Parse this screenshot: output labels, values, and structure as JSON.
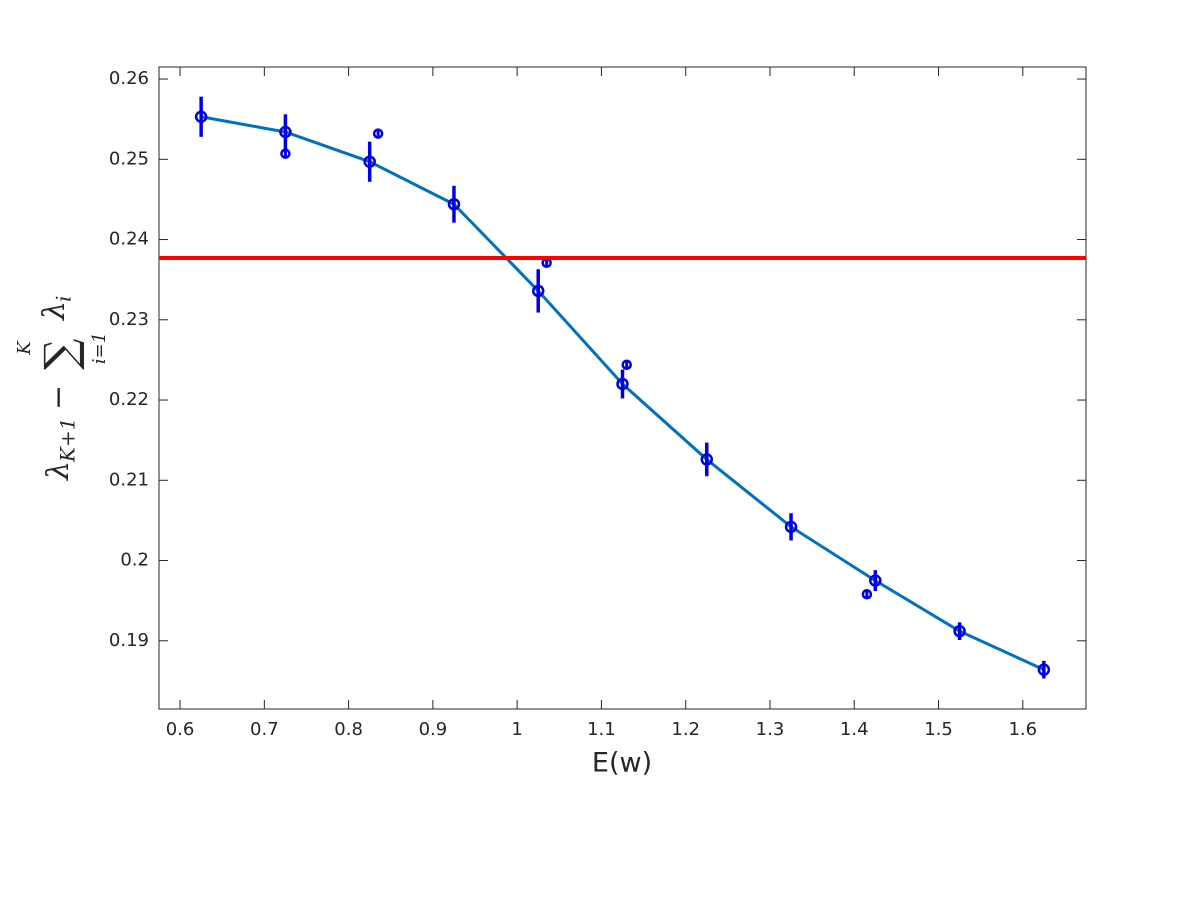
{
  "chart_data": {
    "type": "line",
    "xlabel": "E(w)",
    "ylabel_parts": [
      "λ",
      "K+1",
      " − ",
      "∑",
      "i=1",
      "K",
      "λ",
      "i"
    ],
    "x": [
      0.625,
      0.725,
      0.825,
      0.925,
      1.025,
      1.125,
      1.225,
      1.325,
      1.425,
      1.525,
      1.625
    ],
    "series": [
      {
        "color": "#0072bd",
        "marker_color": "#0000e6",
        "values": [
          0.2553,
          0.2534,
          0.2497,
          0.2444,
          0.2336,
          0.222,
          0.2126,
          0.2042,
          0.1975,
          0.1912,
          0.1864
        ],
        "errors": [
          0.0025,
          0.0022,
          0.0025,
          0.0023,
          0.0027,
          0.0018,
          0.0021,
          0.0017,
          0.0013,
          0.0011,
          0.0011
        ]
      }
    ],
    "points": {
      "color": "#0000e6",
      "x": [
        0.725,
        0.835,
        1.035,
        1.13,
        1.415
      ],
      "values": [
        0.2507,
        0.2532,
        0.2371,
        0.2244,
        0.1958
      ],
      "errors": [
        0.0004,
        0.0004,
        0.0004,
        0.0004,
        0.0004
      ]
    },
    "hline": {
      "value": 0.2377,
      "color": "#ff0000"
    },
    "xlim": [
      0.575,
      1.675
    ],
    "ylim": [
      0.1815,
      0.2615
    ],
    "xticks": [
      0.6,
      0.7,
      0.8,
      0.9,
      1,
      1.1,
      1.2,
      1.3,
      1.4,
      1.5,
      1.6
    ],
    "yticks": [
      0.19,
      0.2,
      0.21,
      0.22,
      0.23,
      0.24,
      0.25,
      0.26
    ]
  }
}
